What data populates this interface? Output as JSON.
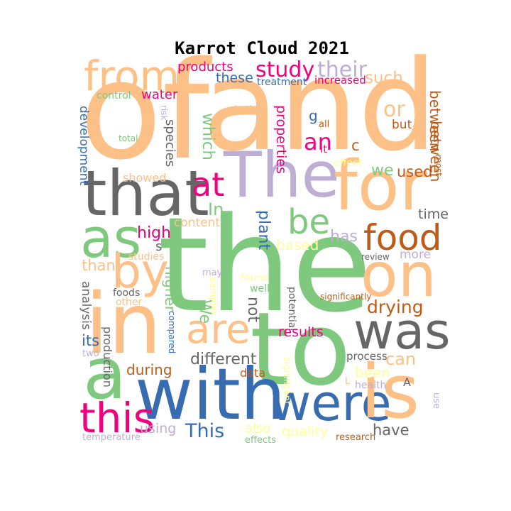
{
  "title": "Karrot Cloud 2021",
  "palette": {
    "orange": "#fdc086",
    "green": "#7fc97f",
    "purple": "#beaed4",
    "yellow": "#ffff99",
    "blue": "#386cb0",
    "pink": "#f0027f",
    "brown": "#bf5b17",
    "gray": "#666666"
  },
  "words": [
    {
      "text": "of",
      "color": "orange"
    },
    {
      "text": "and",
      "color": "orange"
    },
    {
      "text": "the",
      "color": "green"
    },
    {
      "text": "The",
      "color": "purple"
    },
    {
      "text": "that",
      "color": "gray"
    },
    {
      "text": "for",
      "color": "orange"
    },
    {
      "text": "to",
      "color": "green"
    },
    {
      "text": "in",
      "color": "orange"
    },
    {
      "text": "a",
      "color": "green"
    },
    {
      "text": "with",
      "color": "blue"
    },
    {
      "text": "were",
      "color": "blue"
    },
    {
      "text": "is",
      "color": "orange"
    },
    {
      "text": "was",
      "color": "gray"
    },
    {
      "text": "on",
      "color": "orange"
    },
    {
      "text": "as",
      "color": "green"
    },
    {
      "text": "by",
      "color": "orange"
    },
    {
      "text": "are",
      "color": "orange"
    },
    {
      "text": "from",
      "color": "orange"
    },
    {
      "text": "this",
      "color": "pink"
    },
    {
      "text": "food",
      "color": "brown"
    },
    {
      "text": "be",
      "color": "green"
    },
    {
      "text": "at",
      "color": "pink"
    },
    {
      "text": "study",
      "color": "pink"
    },
    {
      "text": "their",
      "color": "purple"
    },
    {
      "text": "products",
      "color": "pink"
    },
    {
      "text": "these",
      "color": "blue"
    },
    {
      "text": "treatment",
      "color": "blue"
    },
    {
      "text": "increased",
      "color": "pink"
    },
    {
      "text": "such",
      "color": "orange"
    },
    {
      "text": "water",
      "color": "pink"
    },
    {
      "text": "control",
      "color": "green"
    },
    {
      "text": "risk",
      "color": "purple"
    },
    {
      "text": "both",
      "color": "orange"
    },
    {
      "text": "g",
      "color": "blue"
    },
    {
      "text": "all",
      "color": "brown"
    },
    {
      "text": "or",
      "color": "orange"
    },
    {
      "text": "but",
      "color": "brown"
    },
    {
      "text": "between",
      "color": "brown"
    },
    {
      "text": "between",
      "color": "brown"
    },
    {
      "text": "most",
      "color": "brown"
    },
    {
      "text": "development",
      "color": "blue"
    },
    {
      "text": "total",
      "color": "green"
    },
    {
      "text": "species",
      "color": "gray"
    },
    {
      "text": "which",
      "color": "green"
    },
    {
      "text": "properties",
      "color": "pink"
    },
    {
      "text": "an",
      "color": "pink"
    },
    {
      "text": "it",
      "color": "pink"
    },
    {
      "text": "c",
      "color": "brown"
    },
    {
      "text": "effect",
      "color": "yellow"
    },
    {
      "text": "we",
      "color": "green"
    },
    {
      "text": "used",
      "color": "brown"
    },
    {
      "text": "showed",
      "color": "orange"
    },
    {
      "text": "In",
      "color": "green"
    },
    {
      "text": "time",
      "color": "gray"
    },
    {
      "text": "content",
      "color": "orange"
    },
    {
      "text": "high",
      "color": "pink"
    },
    {
      "text": "s",
      "color": "gray"
    },
    {
      "text": "plant",
      "color": "blue"
    },
    {
      "text": "has",
      "color": "purple"
    },
    {
      "text": "based",
      "color": "yellow"
    },
    {
      "text": "more",
      "color": "purple"
    },
    {
      "text": "studies",
      "color": "orange"
    },
    {
      "text": "review",
      "color": "gray"
    },
    {
      "text": "than",
      "color": "orange"
    },
    {
      "text": "may",
      "color": "purple"
    },
    {
      "text": "found",
      "color": "yellow"
    },
    {
      "text": "well",
      "color": "green"
    },
    {
      "text": "analysis",
      "color": "gray"
    },
    {
      "text": "foods",
      "color": "gray"
    },
    {
      "text": "other",
      "color": "orange"
    },
    {
      "text": "higher",
      "color": "green"
    },
    {
      "text": "samples",
      "color": "yellow"
    },
    {
      "text": "potential",
      "color": "gray"
    },
    {
      "text": "significantly",
      "color": "brown"
    },
    {
      "text": "drying",
      "color": "brown"
    },
    {
      "text": "not",
      "color": "gray"
    },
    {
      "text": "We",
      "color": "green"
    },
    {
      "text": "compared",
      "color": "blue"
    },
    {
      "text": "production",
      "color": "gray"
    },
    {
      "text": "its",
      "color": "blue"
    },
    {
      "text": "two",
      "color": "purple"
    },
    {
      "text": "results",
      "color": "pink"
    },
    {
      "text": "different",
      "color": "gray"
    },
    {
      "text": "process",
      "color": "gray"
    },
    {
      "text": "can",
      "color": "orange"
    },
    {
      "text": "during",
      "color": "brown"
    },
    {
      "text": "data",
      "color": "brown"
    },
    {
      "text": "significant",
      "color": "yellow"
    },
    {
      "text": "been",
      "color": "yellow"
    },
    {
      "text": "L",
      "color": "orange"
    },
    {
      "text": "health",
      "color": "purple"
    },
    {
      "text": "A",
      "color": "gray"
    },
    {
      "text": "use",
      "color": "purple"
    },
    {
      "text": "using",
      "color": "purple"
    },
    {
      "text": "This",
      "color": "blue"
    },
    {
      "text": "also",
      "color": "yellow"
    },
    {
      "text": "quality",
      "color": "yellow"
    },
    {
      "text": "have",
      "color": "gray"
    },
    {
      "text": "temperature",
      "color": "purple"
    },
    {
      "text": "effects",
      "color": "green"
    },
    {
      "text": "research",
      "color": "brown"
    }
  ]
}
